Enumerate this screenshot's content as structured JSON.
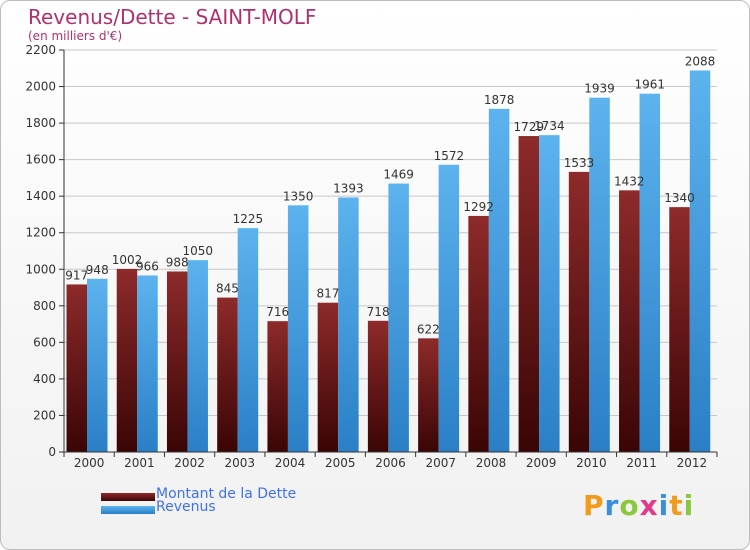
{
  "chart_data": {
    "type": "bar",
    "title": "Revenus/Dette - SAINT-MOLF",
    "subtitle": "(en milliers d'€)",
    "categories": [
      "2000",
      "2001",
      "2002",
      "2003",
      "2004",
      "2005",
      "2006",
      "2007",
      "2008",
      "2009",
      "2010",
      "2011",
      "2012"
    ],
    "series": [
      {
        "name": "Montant de la Dette",
        "color": "#7a1a1a",
        "values": [
          917,
          1002,
          988,
          845,
          716,
          817,
          718,
          622,
          1292,
          1729,
          1533,
          1432,
          1340
        ]
      },
      {
        "name": "Revenus",
        "color": "#3d9de0",
        "values": [
          948,
          966,
          1050,
          1225,
          1350,
          1393,
          1469,
          1572,
          1878,
          1734,
          1939,
          1961,
          2088
        ]
      }
    ],
    "value_labels": [
      [
        "917",
        "1002",
        "988",
        "845",
        "716",
        "817",
        "718",
        "622",
        "1292",
        "1729",
        "1533",
        "1432",
        "1340"
      ],
      [
        "948",
        "966",
        "1050",
        "1225",
        "1350",
        "1393",
        "1469",
        "1572",
        "1878",
        "1734",
        "1939",
        "1961",
        "2088"
      ]
    ],
    "ylim": [
      0,
      2200
    ],
    "yticks": [
      0,
      200,
      400,
      600,
      800,
      1000,
      1200,
      1400,
      1600,
      1800,
      2000,
      2200
    ],
    "grid": true,
    "legend_position": "bottom-left"
  },
  "logo": {
    "letters": [
      "P",
      "r",
      "o",
      "x",
      "i",
      "t",
      "i"
    ],
    "colors": [
      "#f29a1b",
      "#3a8fdc",
      "#8dc63f",
      "#e23a8a",
      "#3a8fdc",
      "#f29a1b",
      "#8dc63f"
    ]
  }
}
